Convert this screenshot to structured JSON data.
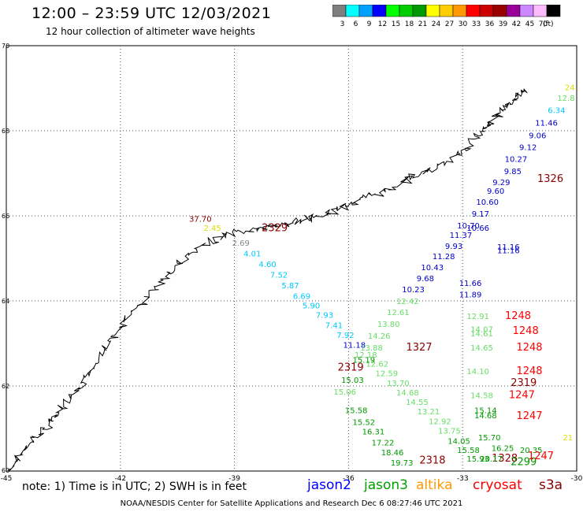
{
  "header": {
    "title": "12:00 – 23:59 UTC 12/03/2021",
    "subtitle": "12 hour collection of altimeter wave heights"
  },
  "colorbar": {
    "unit": "(ft)",
    "bins": [
      {
        "label": "3",
        "color": "#7f7f7f"
      },
      {
        "label": "6",
        "color": "#00ffff"
      },
      {
        "label": "9",
        "color": "#00a0ff"
      },
      {
        "label": "12",
        "color": "#0000ff"
      },
      {
        "label": "15",
        "color": "#00ff00"
      },
      {
        "label": "18",
        "color": "#00cc00"
      },
      {
        "label": "21",
        "color": "#009900"
      },
      {
        "label": "24",
        "color": "#ffff00"
      },
      {
        "label": "27",
        "color": "#ffcc00"
      },
      {
        "label": "30",
        "color": "#ff9900"
      },
      {
        "label": "33",
        "color": "#ff0000"
      },
      {
        "label": "36",
        "color": "#cc0000"
      },
      {
        "label": "39",
        "color": "#990000"
      },
      {
        "label": "42",
        "color": "#990099"
      },
      {
        "label": "45",
        "color": "#cc88ff"
      },
      {
        "label": "70",
        "color": "#ffbbff"
      },
      {
        "label": "",
        "color": "#000000"
      }
    ]
  },
  "map": {
    "lon_range": [
      -45,
      -30
    ],
    "lat_range": [
      60,
      70
    ],
    "lon_ticks": [
      "-45",
      "-42",
      "-39",
      "-36",
      "-33",
      "-30"
    ],
    "lat_ticks": [
      "62",
      "64",
      "66",
      "68",
      "70"
    ],
    "lon_tick_values": [
      -45,
      -42,
      -39,
      -36,
      -33,
      -30
    ],
    "lat_tick_values": [
      62,
      64,
      66,
      68,
      70
    ],
    "corner_label": "60",
    "colors": {
      "cyan": "#00c8ff",
      "blue": "#0000cc",
      "lgreen": "#66dd66",
      "green": "#009900",
      "orange": "#ff9900",
      "red": "#ff0000",
      "dred": "#8b0000",
      "gray": "#888888",
      "yellow": "#dddd00",
      "coast": "#000000",
      "grid": "#555555"
    },
    "obs": [
      {
        "t": "37.70",
        "lon": -39.6,
        "lat": 65.86,
        "c": "dred"
      },
      {
        "t": "2329",
        "lon": -37.6,
        "lat": 65.64,
        "c": "dred",
        "big": 1
      },
      {
        "t": "2.69",
        "lon": -38.6,
        "lat": 65.3,
        "c": "gray"
      },
      {
        "t": "4.01",
        "lon": -38.3,
        "lat": 65.05,
        "c": "cyan"
      },
      {
        "t": "4.60",
        "lon": -37.9,
        "lat": 64.8,
        "c": "cyan"
      },
      {
        "t": "7.52",
        "lon": -37.6,
        "lat": 64.55,
        "c": "cyan"
      },
      {
        "t": "5.87",
        "lon": -37.3,
        "lat": 64.3,
        "c": "cyan"
      },
      {
        "t": "6.69",
        "lon": -37.0,
        "lat": 64.05,
        "c": "cyan"
      },
      {
        "t": "5.90",
        "lon": -36.75,
        "lat": 63.82,
        "c": "cyan"
      },
      {
        "t": "7.93",
        "lon": -36.4,
        "lat": 63.6,
        "c": "cyan"
      },
      {
        "t": "7.41",
        "lon": -36.15,
        "lat": 63.36,
        "c": "cyan"
      },
      {
        "t": "7.92",
        "lon": -35.85,
        "lat": 63.13,
        "c": "cyan"
      },
      {
        "t": "11.18",
        "lon": -35.55,
        "lat": 62.9,
        "c": "blue"
      },
      {
        "t": "12.18",
        "lon": -35.25,
        "lat": 62.67,
        "c": "lgreen"
      },
      {
        "t": "12.62",
        "lon": -34.95,
        "lat": 62.45,
        "c": "lgreen"
      },
      {
        "t": "12.59",
        "lon": -34.7,
        "lat": 62.23,
        "c": "lgreen"
      },
      {
        "t": "13.70",
        "lon": -34.4,
        "lat": 62.0,
        "c": "lgreen"
      },
      {
        "t": "14.68",
        "lon": -34.15,
        "lat": 61.78,
        "c": "lgreen"
      },
      {
        "t": "14.55",
        "lon": -33.9,
        "lat": 61.56,
        "c": "lgreen"
      },
      {
        "t": "13.21",
        "lon": -33.6,
        "lat": 61.33,
        "c": "lgreen"
      },
      {
        "t": "12.92",
        "lon": -33.3,
        "lat": 61.1,
        "c": "lgreen"
      },
      {
        "t": "13.75",
        "lon": -33.05,
        "lat": 60.88,
        "c": "lgreen"
      },
      {
        "t": "14.05",
        "lon": -32.8,
        "lat": 60.64,
        "c": "green"
      },
      {
        "t": "15.58",
        "lon": -32.55,
        "lat": 60.43,
        "c": "green"
      },
      {
        "t": "15.93",
        "lon": -32.3,
        "lat": 60.22,
        "c": "green"
      },
      {
        "t": "1328",
        "lon": -31.55,
        "lat": 60.22,
        "c": "dred",
        "big": 1
      },
      {
        "t": "2319",
        "lon": -31.05,
        "lat": 62.0,
        "c": "dred",
        "big": 1
      },
      {
        "t": "2.45",
        "lon": -39.35,
        "lat": 65.65,
        "c": "yellow"
      },
      {
        "t": "24",
        "lon": -30.05,
        "lat": 68.95,
        "c": "yellow"
      },
      {
        "t": "12.8",
        "lon": -30.05,
        "lat": 68.7,
        "c": "lgreen"
      },
      {
        "t": "6.34",
        "lon": -30.3,
        "lat": 68.42,
        "c": "cyan"
      },
      {
        "t": "11.46",
        "lon": -30.5,
        "lat": 68.12,
        "c": "blue"
      },
      {
        "t": "9.06",
        "lon": -30.8,
        "lat": 67.82,
        "c": "blue"
      },
      {
        "t": "9.12",
        "lon": -31.05,
        "lat": 67.55,
        "c": "blue"
      },
      {
        "t": "10.27",
        "lon": -31.3,
        "lat": 67.27,
        "c": "blue"
      },
      {
        "t": "9.85",
        "lon": -31.45,
        "lat": 66.98,
        "c": "blue"
      },
      {
        "t": "1326",
        "lon": -30.35,
        "lat": 66.8,
        "c": "dred",
        "big": 1
      },
      {
        "t": "9.29",
        "lon": -31.75,
        "lat": 66.72,
        "c": "blue"
      },
      {
        "t": "9.60",
        "lon": -31.9,
        "lat": 66.52,
        "c": "blue"
      },
      {
        "t": "10.60",
        "lon": -32.05,
        "lat": 66.26,
        "c": "blue"
      },
      {
        "t": "9.17",
        "lon": -32.3,
        "lat": 65.98,
        "c": "blue"
      },
      {
        "t": "10.70",
        "lon": -32.55,
        "lat": 65.7,
        "c": "blue"
      },
      {
        "t": "10.66",
        "lon": -32.3,
        "lat": 65.65,
        "c": "blue"
      },
      {
        "t": "11.37",
        "lon": -32.75,
        "lat": 65.48,
        "c": "blue"
      },
      {
        "t": "9.93",
        "lon": -33.0,
        "lat": 65.22,
        "c": "blue"
      },
      {
        "t": "11.16",
        "lon": -31.5,
        "lat": 65.2,
        "c": "blue"
      },
      {
        "t": "11.16",
        "lon": -31.5,
        "lat": 65.12,
        "c": "blue"
      },
      {
        "t": "11.28",
        "lon": -33.2,
        "lat": 64.98,
        "c": "blue"
      },
      {
        "t": "10.43",
        "lon": -33.5,
        "lat": 64.72,
        "c": "blue"
      },
      {
        "t": "9.68",
        "lon": -33.75,
        "lat": 64.46,
        "c": "blue"
      },
      {
        "t": "10.23",
        "lon": -34.0,
        "lat": 64.2,
        "c": "blue"
      },
      {
        "t": "11.66",
        "lon": -32.5,
        "lat": 64.35,
        "c": "blue"
      },
      {
        "t": "11.89",
        "lon": -32.5,
        "lat": 64.08,
        "c": "blue"
      },
      {
        "t": "12.42",
        "lon": -34.15,
        "lat": 63.93,
        "c": "lgreen"
      },
      {
        "t": "12.61",
        "lon": -34.4,
        "lat": 63.67,
        "c": "lgreen"
      },
      {
        "t": "13.80",
        "lon": -34.65,
        "lat": 63.39,
        "c": "lgreen"
      },
      {
        "t": "14.26",
        "lon": -34.9,
        "lat": 63.11,
        "c": "lgreen"
      },
      {
        "t": "13.88",
        "lon": -35.1,
        "lat": 62.83,
        "c": "lgreen"
      },
      {
        "t": "1327",
        "lon": -33.8,
        "lat": 62.83,
        "c": "dred",
        "big": 1
      },
      {
        "t": "15.19",
        "lon": -35.3,
        "lat": 62.55,
        "c": "green"
      },
      {
        "t": "2319",
        "lon": -35.6,
        "lat": 62.36,
        "c": "dred",
        "big": 1
      },
      {
        "t": "15.03",
        "lon": -35.6,
        "lat": 62.07,
        "c": "green"
      },
      {
        "t": "15.06",
        "lon": -35.8,
        "lat": 61.8,
        "c": "lgreen"
      },
      {
        "t": "15.58",
        "lon": -35.5,
        "lat": 61.36,
        "c": "green"
      },
      {
        "t": "15.52",
        "lon": -35.3,
        "lat": 61.08,
        "c": "green"
      },
      {
        "t": "16.31",
        "lon": -35.05,
        "lat": 60.86,
        "c": "green"
      },
      {
        "t": "17.22",
        "lon": -34.8,
        "lat": 60.6,
        "c": "green"
      },
      {
        "t": "18.46",
        "lon": -34.55,
        "lat": 60.37,
        "c": "green"
      },
      {
        "t": "19.73",
        "lon": -34.3,
        "lat": 60.13,
        "c": "green"
      },
      {
        "t": "2318",
        "lon": -33.45,
        "lat": 60.18,
        "c": "dred",
        "big": 1
      },
      {
        "t": "12.91",
        "lon": -32.3,
        "lat": 63.57,
        "c": "lgreen"
      },
      {
        "t": "1248",
        "lon": -31.2,
        "lat": 63.57,
        "c": "red",
        "big": 1
      },
      {
        "t": "14.07",
        "lon": -32.2,
        "lat": 63.27,
        "c": "lgreen"
      },
      {
        "t": "14.61",
        "lon": -32.2,
        "lat": 63.17,
        "c": "lgreen"
      },
      {
        "t": "1248",
        "lon": -31.0,
        "lat": 63.22,
        "c": "red",
        "big": 1
      },
      {
        "t": "14.65",
        "lon": -32.2,
        "lat": 62.83,
        "c": "lgreen"
      },
      {
        "t": "1248",
        "lon": -30.9,
        "lat": 62.83,
        "c": "red",
        "big": 1
      },
      {
        "t": "14.10",
        "lon": -32.3,
        "lat": 62.28,
        "c": "lgreen"
      },
      {
        "t": "1248",
        "lon": -30.9,
        "lat": 62.28,
        "c": "red",
        "big": 1
      },
      {
        "t": "14.58",
        "lon": -32.2,
        "lat": 61.71,
        "c": "lgreen"
      },
      {
        "t": "1247",
        "lon": -31.1,
        "lat": 61.71,
        "c": "red",
        "big": 1
      },
      {
        "t": "15.14",
        "lon": -32.1,
        "lat": 61.36,
        "c": "green"
      },
      {
        "t": "14.68",
        "lon": -32.1,
        "lat": 61.24,
        "c": "green"
      },
      {
        "t": "1247",
        "lon": -30.9,
        "lat": 61.22,
        "c": "red",
        "big": 1
      },
      {
        "t": "15.70",
        "lon": -32.0,
        "lat": 60.72,
        "c": "green"
      },
      {
        "t": "16.25",
        "lon": -31.65,
        "lat": 60.47,
        "c": "green"
      },
      {
        "t": "20.35",
        "lon": -30.9,
        "lat": 60.43,
        "c": "green"
      },
      {
        "t": "21",
        "lon": -30.1,
        "lat": 60.72,
        "c": "yellow"
      },
      {
        "t": "20.17",
        "lon": -31.95,
        "lat": 60.22,
        "c": "green"
      },
      {
        "t": "2299",
        "lon": -31.05,
        "lat": 60.14,
        "c": "green",
        "big": 1
      },
      {
        "t": "1247",
        "lon": -30.6,
        "lat": 60.28,
        "c": "red",
        "big": 1
      }
    ]
  },
  "footer": {
    "note": "note: 1) Time is in UTC; 2) SWH is in feet",
    "satellites": [
      {
        "name": "jason2",
        "color": "#0000ff"
      },
      {
        "name": "jason3",
        "color": "#00a000"
      },
      {
        "name": "altika",
        "color": "#ff9900"
      },
      {
        "name": "cryosat",
        "color": "#ff0000"
      },
      {
        "name": "s3a",
        "color": "#8b0000"
      }
    ],
    "credit": "NOAA/NESDIS Center for Satellite Applications and Research     Dec  6 08:27:46 UTC 2021"
  }
}
